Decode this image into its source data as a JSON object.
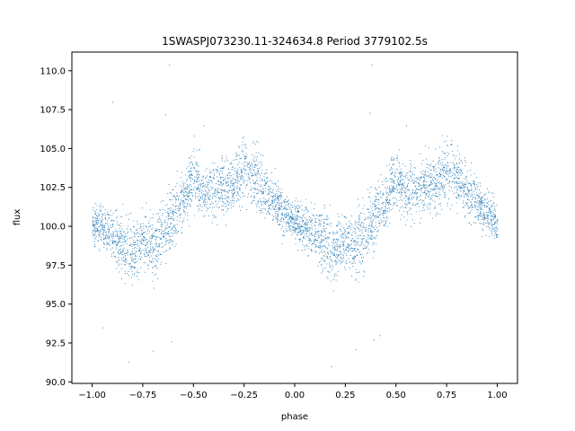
{
  "chart_data": {
    "type": "scatter",
    "title": "1SWASPJ073230.11-324634.8 Period 3779102.5s",
    "xlabel": "phase",
    "ylabel": "flux",
    "xlim": [
      -1.1,
      1.1
    ],
    "ylim": [
      89.9,
      111.2
    ],
    "xticks": [
      -1.0,
      -0.75,
      -0.5,
      -0.25,
      0.0,
      0.25,
      0.5,
      0.75,
      1.0
    ],
    "xtick_labels": [
      "−1.00",
      "−0.75",
      "−0.50",
      "−0.25",
      "0.00",
      "0.25",
      "0.50",
      "0.75",
      "1.00"
    ],
    "yticks": [
      90.0,
      92.5,
      95.0,
      97.5,
      100.0,
      102.5,
      105.0,
      107.5,
      110.0
    ],
    "ytick_labels": [
      "90.0",
      "92.5",
      "95.0",
      "97.5",
      "100.0",
      "102.5",
      "105.0",
      "107.5",
      "110.0"
    ],
    "grid": false,
    "marker_color": "#1f77b4",
    "series": [
      {
        "trend": {
          "phase": [
            0.0,
            0.05,
            0.1,
            0.15,
            0.2,
            0.25,
            0.3,
            0.35,
            0.4,
            0.45,
            0.5,
            0.55,
            0.6,
            0.65,
            0.7,
            0.75,
            0.8,
            0.85,
            0.9,
            0.95,
            1.0
          ],
          "flux": [
            100.3,
            100.0,
            99.6,
            98.8,
            98.3,
            99.2,
            98.7,
            99.6,
            100.8,
            101.6,
            103.3,
            102.2,
            102.4,
            102.6,
            102.8,
            103.8,
            103.1,
            102.4,
            101.5,
            100.9,
            100.3
          ],
          "spread": [
            0.9,
            1.0,
            1.1,
            1.5,
            1.4,
            1.1,
            1.6,
            1.5,
            1.4,
            1.2,
            1.4,
            1.1,
            1.2,
            1.3,
            1.4,
            1.6,
            1.4,
            1.3,
            1.1,
            1.0,
            0.9
          ]
        },
        "outliers": [
          {
            "x": -0.62,
            "y": 110.4
          },
          {
            "x": 0.38,
            "y": 110.4
          },
          {
            "x": -0.9,
            "y": 108.0
          },
          {
            "x": -0.64,
            "y": 107.2
          },
          {
            "x": 0.37,
            "y": 107.3
          },
          {
            "x": -0.82,
            "y": 91.3
          },
          {
            "x": 0.18,
            "y": 91.0
          },
          {
            "x": -0.61,
            "y": 92.6
          },
          {
            "x": 0.39,
            "y": 92.7
          },
          {
            "x": -0.95,
            "y": 93.5
          },
          {
            "x": 0.42,
            "y": 93.0
          },
          {
            "x": -0.45,
            "y": 106.5
          },
          {
            "x": 0.55,
            "y": 106.5
          },
          {
            "x": -0.7,
            "y": 92.0
          },
          {
            "x": 0.3,
            "y": 92.1
          }
        ]
      }
    ]
  }
}
